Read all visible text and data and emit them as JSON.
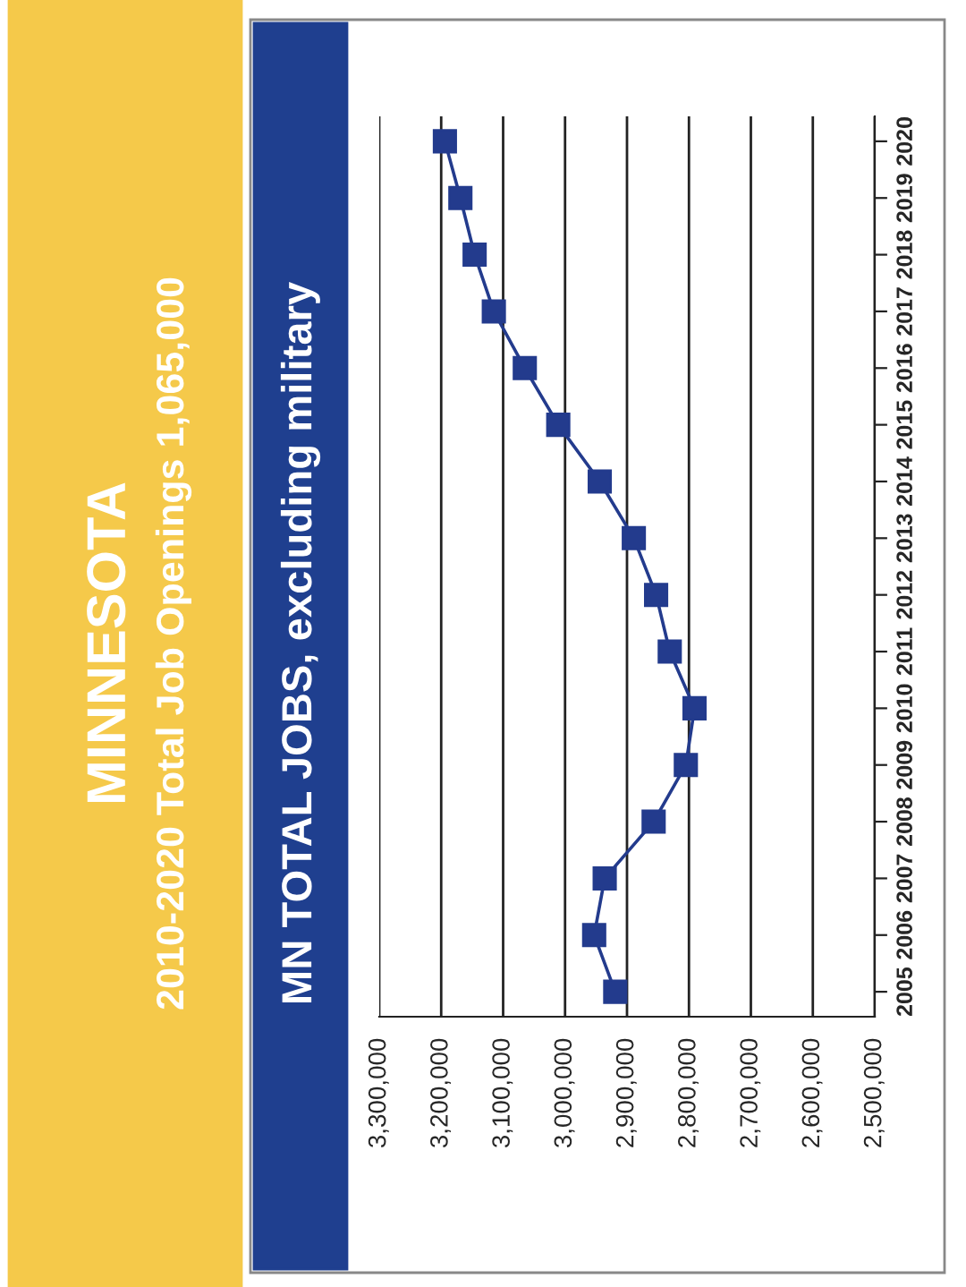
{
  "chart_data": {
    "type": "line",
    "title": "MINNESOTA",
    "subtitle": "2010-2020 Total Job Openings 1,065,000",
    "annotations": [
      "MN TOTAL JOBS, excluding military"
    ],
    "categories": [
      "2020",
      "2019",
      "2018",
      "2017",
      "2016",
      "2015",
      "2014",
      "2013",
      "2012",
      "2011",
      "2010",
      "2009",
      "2008",
      "2007",
      "2006",
      "2005"
    ],
    "series": [
      {
        "color": "#233b8d",
        "values": [
          3194000,
          3169000,
          3146000,
          3115000,
          3065000,
          3011000,
          2944000,
          2889000,
          2853000,
          2831000,
          2791000,
          2805000,
          2857000,
          2936000,
          2953000,
          2919000
        ]
      }
    ],
    "orientation": "horizontal",
    "xlim": [
      3300000,
      2500000
    ],
    "xticks": [
      {
        "value": 3300000,
        "label": "3,300,000"
      },
      {
        "value": 3200000,
        "label": "3,200,000"
      },
      {
        "value": 3100000,
        "label": "3,100,000"
      },
      {
        "value": 3000000,
        "label": "3,000,000"
      },
      {
        "value": 2900000,
        "label": "2,900,000"
      },
      {
        "value": 2800000,
        "label": "2,800,000"
      },
      {
        "value": 2700000,
        "label": "2,700,000"
      },
      {
        "value": 2600000,
        "label": "2,600,000"
      },
      {
        "value": 2500000,
        "label": "2,500,000"
      }
    ],
    "grid": "x",
    "marker": "square",
    "line_style": "solid",
    "legend": false
  }
}
